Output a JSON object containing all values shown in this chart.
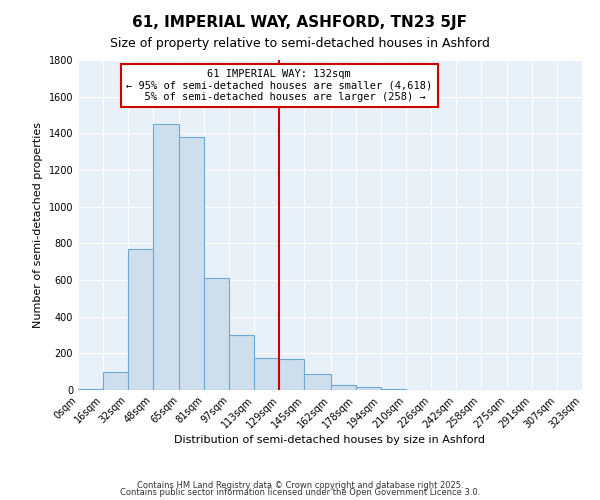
{
  "title": "61, IMPERIAL WAY, ASHFORD, TN23 5JF",
  "subtitle": "Size of property relative to semi-detached houses in Ashford",
  "xlabel": "Distribution of semi-detached houses by size in Ashford",
  "ylabel": "Number of semi-detached properties",
  "bin_edges": [
    0,
    16,
    32,
    48,
    65,
    81,
    97,
    113,
    129,
    145,
    162,
    178,
    194,
    210,
    226,
    242,
    258,
    275,
    291,
    307,
    323
  ],
  "bar_heights": [
    5,
    100,
    770,
    1450,
    1380,
    610,
    300,
    175,
    170,
    85,
    30,
    15,
    5,
    0,
    0,
    0,
    0,
    0,
    0,
    0
  ],
  "bar_color": "#cfdeed",
  "bar_edge_color": "#6aaad4",
  "property_line_x": 129,
  "property_line_color": "#cc0000",
  "ylim": [
    0,
    1800
  ],
  "plot_bg_color": "#e8f0f8",
  "fig_bg_color": "#ffffff",
  "annotation_text": "61 IMPERIAL WAY: 132sqm\n← 95% of semi-detached houses are smaller (4,618)\n  5% of semi-detached houses are larger (258) →",
  "annotation_box_facecolor": "#ffffff",
  "annotation_border_color": "#cc0000",
  "footnote1": "Contains HM Land Registry data © Crown copyright and database right 2025.",
  "footnote2": "Contains public sector information licensed under the Open Government Licence 3.0.",
  "tick_labels": [
    "0sqm",
    "16sqm",
    "32sqm",
    "48sqm",
    "65sqm",
    "81sqm",
    "97sqm",
    "113sqm",
    "129sqm",
    "145sqm",
    "162sqm",
    "178sqm",
    "194sqm",
    "210sqm",
    "226sqm",
    "242sqm",
    "258sqm",
    "275sqm",
    "291sqm",
    "307sqm",
    "323sqm"
  ],
  "yticks": [
    0,
    200,
    400,
    600,
    800,
    1000,
    1200,
    1400,
    1600,
    1800
  ],
  "title_fontsize": 11,
  "subtitle_fontsize": 9,
  "axis_label_fontsize": 8,
  "tick_fontsize": 7,
  "annot_fontsize": 7.5
}
